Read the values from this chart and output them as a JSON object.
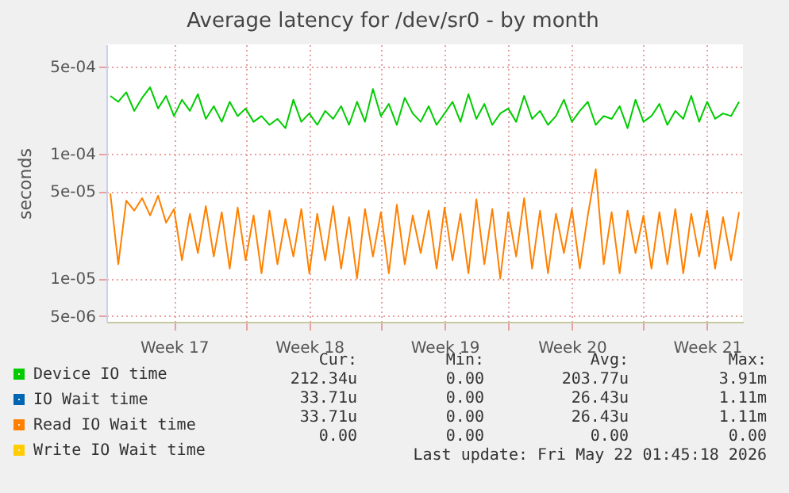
{
  "chart_data": {
    "type": "line",
    "title": "Average latency for /dev/sr0 - by month",
    "ylabel": "seconds",
    "log": "y",
    "grid": true,
    "legend": "bottom left",
    "marker": "none",
    "line_style": "solid",
    "ylim": [
      4.5e-06,
      0.00075
    ],
    "yticks": [
      {
        "value": 5e-06,
        "label": "5e-06"
      },
      {
        "value": 1e-05,
        "label": "1e-05"
      },
      {
        "value": 5e-05,
        "label": "5e-05"
      },
      {
        "value": 0.0001,
        "label": "1e-04"
      },
      {
        "value": 0.0005,
        "label": "5e-04"
      }
    ],
    "categories": [
      null,
      null,
      null,
      null,
      null,
      null,
      null,
      null,
      "Week 17",
      null,
      null,
      null,
      null,
      null,
      null,
      null,
      null,
      null,
      null,
      null,
      null,
      null,
      null,
      null,
      null,
      "Week 18",
      null,
      null,
      null,
      null,
      null,
      null,
      null,
      null,
      null,
      null,
      null,
      null,
      null,
      null,
      null,
      null,
      "Week 19",
      null,
      null,
      null,
      null,
      null,
      null,
      null,
      null,
      null,
      null,
      null,
      null,
      null,
      null,
      null,
      "Week 20",
      null,
      null,
      null,
      null,
      null,
      null,
      null,
      null,
      null,
      null,
      null,
      null,
      null,
      null,
      null,
      null,
      "Week 21",
      null,
      null,
      null,
      null
    ],
    "series": [
      {
        "name": "Device IO time",
        "color": "#00cc00",
        "values": [
          0.00029,
          0.00026,
          0.00031,
          0.00022,
          0.00028,
          0.00034,
          0.00023,
          0.00029,
          0.0002,
          0.00027,
          0.00022,
          0.0003,
          0.00019,
          0.00024,
          0.00018,
          0.00026,
          0.0002,
          0.00023,
          0.00018,
          0.0002,
          0.00017,
          0.00019,
          0.00016,
          0.00027,
          0.00018,
          0.00021,
          0.00017,
          0.00022,
          0.00019,
          0.00024,
          0.00017,
          0.00026,
          0.00018,
          0.00033,
          0.0002,
          0.00025,
          0.00017,
          0.00028,
          0.00021,
          0.00018,
          0.00024,
          0.00017,
          0.00021,
          0.00026,
          0.00018,
          0.0003,
          0.00019,
          0.00025,
          0.00017,
          0.00021,
          0.00023,
          0.00018,
          0.00029,
          0.00019,
          0.00022,
          0.00017,
          0.0002,
          0.00027,
          0.00018,
          0.00022,
          0.00026,
          0.00017,
          0.0002,
          0.00019,
          0.00024,
          0.00016,
          0.00027,
          0.00018,
          0.0002,
          0.00025,
          0.00017,
          0.00022,
          0.00019,
          0.00029,
          0.00018,
          0.00026,
          0.00019,
          0.00021,
          0.0002,
          0.00026
        ]
      },
      {
        "name": "IO Wait time",
        "color": "#0066b3",
        "values": [
          null,
          null,
          null,
          null,
          null,
          null,
          null,
          null,
          null,
          null,
          null,
          null,
          null,
          null,
          null,
          null,
          null,
          null,
          null,
          null,
          null,
          null,
          null,
          null,
          null,
          null,
          null,
          null,
          null,
          null,
          null,
          null,
          null,
          null,
          null,
          null,
          null,
          null,
          null,
          null,
          null,
          null,
          null,
          null,
          null,
          null,
          null,
          null,
          null,
          null,
          null,
          null,
          null,
          null,
          null,
          null,
          null,
          null,
          null,
          null,
          null,
          null,
          null,
          null,
          null,
          null,
          null,
          null,
          null,
          null,
          null,
          null,
          null,
          null,
          null,
          null,
          null,
          null,
          null,
          null
        ]
      },
      {
        "name": "Read IO Wait time",
        "color": "#ff8000",
        "values": [
          4.8e-05,
          1.3e-05,
          4.2e-05,
          3.5e-05,
          4.4e-05,
          3.2e-05,
          4.6e-05,
          2.8e-05,
          3.6e-05,
          1.4e-05,
          3.3e-05,
          1.6e-05,
          3.8e-05,
          1.5e-05,
          3.4e-05,
          1.2e-05,
          3.7e-05,
          1.4e-05,
          3.2e-05,
          1.1e-05,
          3.5e-05,
          1.3e-05,
          3e-05,
          1.5e-05,
          3.6e-05,
          1.1e-05,
          3.3e-05,
          1.4e-05,
          3.8e-05,
          1.2e-05,
          3.1e-05,
          1e-05,
          3.6e-05,
          1.5e-05,
          3.4e-05,
          1.1e-05,
          3.9e-05,
          1.3e-05,
          3.2e-05,
          1.6e-05,
          3.5e-05,
          1.2e-05,
          3.7e-05,
          1.4e-05,
          3.3e-05,
          1.1e-05,
          4.3e-05,
          1.3e-05,
          3.6e-05,
          1e-05,
          3.4e-05,
          1.5e-05,
          4.4e-05,
          1.2e-05,
          3.5e-05,
          1.1e-05,
          3.3e-05,
          1.6e-05,
          3.6e-05,
          1.2e-05,
          3.2e-05,
          7.5e-05,
          1.3e-05,
          3.4e-05,
          1.1e-05,
          3.5e-05,
          1.6e-05,
          3.2e-05,
          1.2e-05,
          3.4e-05,
          1.3e-05,
          3.6e-05,
          1.1e-05,
          3.3e-05,
          1.5e-05,
          3.5e-05,
          1.2e-05,
          3.1e-05,
          1.4e-05,
          3.4e-05
        ]
      },
      {
        "name": "Write IO Wait time",
        "color": "#ffcc00",
        "values": [
          null,
          null,
          null,
          null,
          null,
          null,
          null,
          null,
          null,
          null,
          null,
          null,
          null,
          null,
          null,
          null,
          null,
          null,
          null,
          null,
          null,
          null,
          null,
          null,
          null,
          null,
          null,
          null,
          null,
          null,
          null,
          null,
          null,
          null,
          null,
          null,
          null,
          null,
          null,
          null,
          null,
          null,
          null,
          null,
          null,
          null,
          null,
          null,
          null,
          null,
          null,
          null,
          null,
          null,
          null,
          null,
          null,
          null,
          null,
          null,
          null,
          null,
          null,
          null,
          null,
          null,
          null,
          null,
          null,
          null,
          null,
          null,
          null,
          null,
          null,
          null,
          null,
          null,
          null,
          null
        ]
      }
    ],
    "annotations": [
      "Cur:",
      "Min:",
      "Avg:",
      "Max:",
      "212.34u",
      "0.00",
      "203.77u",
      "3.91m",
      "33.71u",
      "0.00",
      "26.43u",
      "1.11m",
      "33.71u",
      "0.00",
      "26.43u",
      "1.11m",
      "0.00",
      "0.00",
      "0.00",
      "0.00",
      "Last update: Fri May 22 01:45:18 2026"
    ]
  }
}
